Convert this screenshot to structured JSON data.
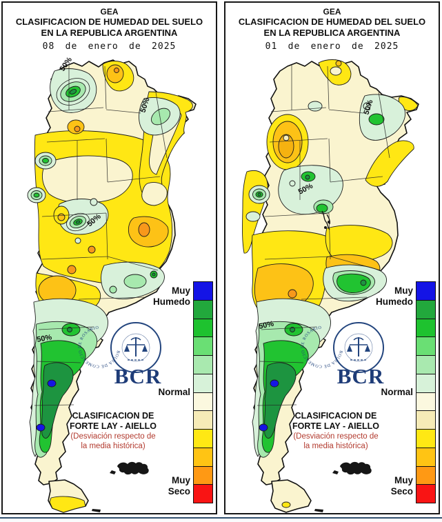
{
  "panels": [
    {
      "title": {
        "org": "GEA",
        "line1": "CLASIFICACION DE HUMEDAD DEL SUELO",
        "line2": "EN LA REPUBLICA ARGENTINA",
        "date": "08 de enero de 2025"
      },
      "contour_labels": [
        "50%",
        "50%",
        "50%",
        "50%"
      ]
    },
    {
      "title": {
        "org": "GEA",
        "line1": "CLASIFICACION DE HUMEDAD DEL SUELO",
        "line2": "EN LA REPUBLICA ARGENTINA",
        "date": "01 de enero de 2025"
      },
      "contour_labels": [
        "50%",
        "50%",
        "50%"
      ]
    }
  ],
  "legend": {
    "labels": {
      "muy_humedo_1": "Muy",
      "muy_humedo_2": "Humedo",
      "normal": "Normal",
      "muy_seco_1": "Muy",
      "muy_seco_2": "Seco"
    },
    "colors": [
      "#1414E6",
      "#22A83C",
      "#1EC22F",
      "#6ADF74",
      "#A9E9AF",
      "#D7F2D9",
      "#FBF8DF",
      "#F6EBB7",
      "#FFE814",
      "#FFC414",
      "#FF9914",
      "#F91414"
    ],
    "scale_top_meaning": "Muy Humedo",
    "scale_mid_meaning": "Normal",
    "scale_bottom_meaning": "Muy Seco"
  },
  "branding": {
    "seal_text": "BOLSA DE COMERCIO DE ROSARIO",
    "acronym": "BCR"
  },
  "classification": {
    "line1": "CLASIFICACION DE",
    "line2": "FORTE LAY - AIELLO",
    "line3": "(Desviación respecto de",
    "line4": "la media histórica)",
    "text_color": "#B23A2E"
  }
}
